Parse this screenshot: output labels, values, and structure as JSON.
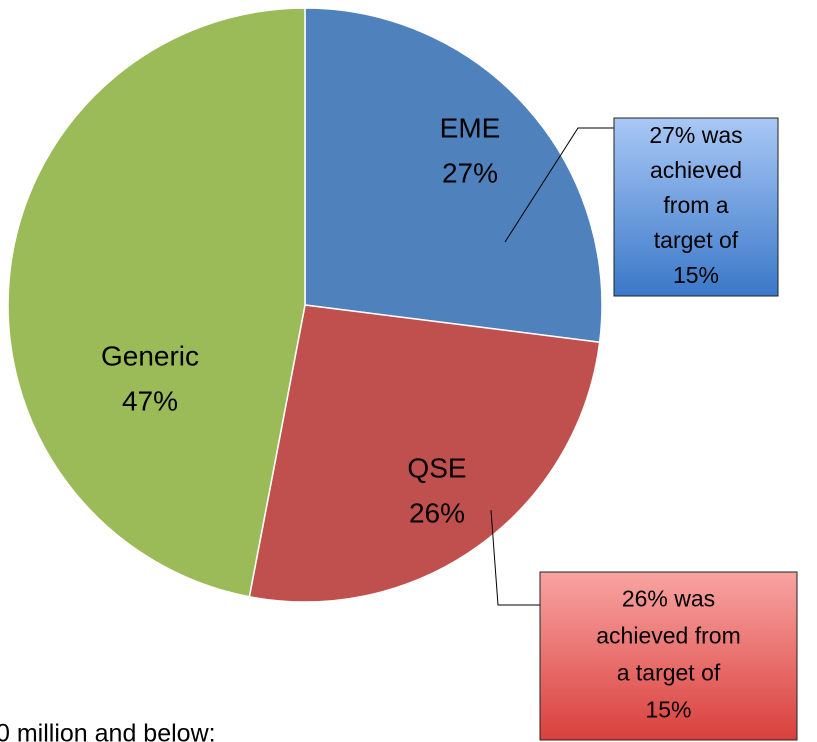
{
  "chart_data": {
    "type": "pie",
    "categories": [
      "EME",
      "QSE",
      "Generic"
    ],
    "values": [
      27,
      26,
      47
    ],
    "value_labels": [
      "27%",
      "26%",
      "47%"
    ],
    "colors": [
      "#4f81bd",
      "#c0504d",
      "#9bbb59"
    ],
    "start": "top",
    "direction": "clockwise",
    "annotations": [
      {
        "lines": [
          "27% was",
          "achieved",
          "from a",
          "target of",
          "15%"
        ],
        "color": "#4f81bd"
      },
      {
        "lines": [
          "26% was",
          "achieved from",
          "a target of",
          "15%"
        ],
        "color": "#c0504d"
      }
    ],
    "footer": "0 million and below:"
  }
}
